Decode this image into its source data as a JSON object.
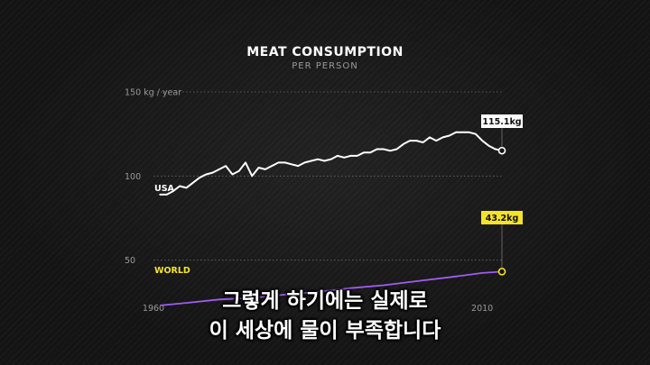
{
  "chart_data": {
    "type": "line",
    "title": "MEAT CONSUMPTION",
    "subtitle": "PER PERSON",
    "ylabel": "",
    "ylim": [
      30,
      150
    ],
    "xlim": [
      1960,
      2013
    ],
    "y_ticks": [
      {
        "value": 150,
        "label": "150 kg / year"
      },
      {
        "value": 100,
        "label": "100"
      },
      {
        "value": 50,
        "label": "50"
      }
    ],
    "x_ticks": [
      {
        "value": 1960,
        "label": "1960"
      },
      {
        "value": 2010,
        "label": "2010"
      }
    ],
    "grid": true,
    "series": [
      {
        "name": "USA",
        "color": "#ffffff",
        "end_label": "115.1kg",
        "x": [
          1961,
          1962,
          1963,
          1964,
          1965,
          1966,
          1967,
          1968,
          1969,
          1970,
          1971,
          1972,
          1973,
          1974,
          1975,
          1976,
          1977,
          1978,
          1979,
          1980,
          1981,
          1982,
          1983,
          1984,
          1985,
          1986,
          1987,
          1988,
          1989,
          1990,
          1991,
          1992,
          1993,
          1994,
          1995,
          1996,
          1997,
          1998,
          1999,
          2000,
          2001,
          2002,
          2003,
          2004,
          2005,
          2006,
          2007,
          2008,
          2009,
          2010,
          2011,
          2012,
          2013
        ],
        "values": [
          89,
          89,
          91,
          94,
          93,
          96,
          99,
          101,
          102,
          104,
          106,
          101,
          103,
          108,
          100,
          105,
          104,
          106,
          108,
          108,
          107,
          106,
          108,
          109,
          110,
          109,
          110,
          112,
          111,
          112,
          112,
          114,
          114,
          116,
          116,
          115,
          116,
          119,
          121,
          121,
          120,
          123,
          121,
          123,
          124,
          126,
          126,
          126,
          125,
          121,
          118,
          116,
          115.1
        ]
      },
      {
        "name": "WORLD",
        "color": "#a05cf0",
        "end_label": "43.2kg",
        "x": [
          1961,
          1965,
          1970,
          1975,
          1980,
          1985,
          1990,
          1995,
          2000,
          2005,
          2010,
          2013
        ],
        "values": [
          23.1,
          24.6,
          26.6,
          27.6,
          29.5,
          31.2,
          33.4,
          35.1,
          37.5,
          39.8,
          42.4,
          43.2
        ]
      }
    ]
  },
  "labels": {
    "usa": "USA",
    "world": "WORLD",
    "usa_end": "115.1kg",
    "world_end": "43.2kg"
  },
  "colors": {
    "usa_label_bg": "#ffffff",
    "world_label_bg": "#f5e32a",
    "world_line": "#a05cf0",
    "world_marker": "#f5e32a"
  },
  "caption": {
    "line1": "그렇게 하기에는 실제로",
    "line2": "이 세상에 물이 부족합니다"
  }
}
